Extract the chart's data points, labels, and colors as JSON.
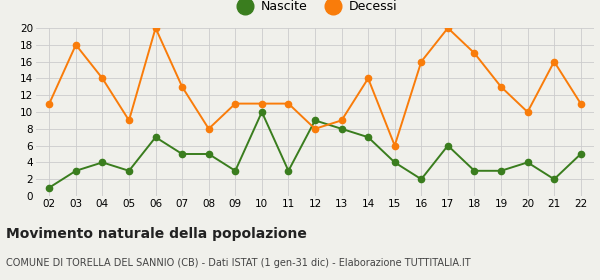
{
  "years": [
    2,
    3,
    4,
    5,
    6,
    7,
    8,
    9,
    10,
    11,
    12,
    13,
    14,
    15,
    16,
    17,
    18,
    19,
    20,
    21,
    22
  ],
  "nascite": [
    1,
    3,
    4,
    3,
    7,
    5,
    5,
    3,
    10,
    3,
    9,
    8,
    7,
    4,
    2,
    6,
    3,
    3,
    4,
    2,
    5
  ],
  "decessi": [
    11,
    18,
    14,
    9,
    20,
    13,
    8,
    11,
    11,
    11,
    8,
    9,
    14,
    6,
    16,
    20,
    17,
    13,
    10,
    16,
    11
  ],
  "nascite_color": "#3a7d1e",
  "decessi_color": "#f97c0a",
  "title": "Movimento naturale della popolazione",
  "subtitle": "COMUNE DI TORELLA DEL SANNIO (CB) - Dati ISTAT (1 gen-31 dic) - Elaborazione TUTTITALIA.IT",
  "legend_nascite": "Nascite",
  "legend_decessi": "Decessi",
  "ylim": [
    0,
    20
  ],
  "yticks": [
    0,
    2,
    4,
    6,
    8,
    10,
    12,
    14,
    16,
    18,
    20
  ],
  "bg_color": "#f0f0eb",
  "grid_color": "#cccccc",
  "title_fontsize": 10,
  "subtitle_fontsize": 7,
  "legend_fontsize": 9,
  "tick_fontsize": 7.5,
  "linewidth": 1.4,
  "markersize": 4.5,
  "legend_markersize": 12
}
